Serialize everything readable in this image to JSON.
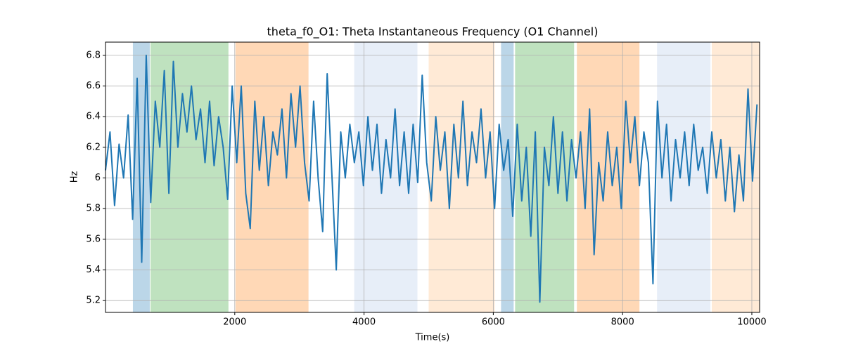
{
  "chart_data": {
    "type": "line",
    "title": "theta_f0_O1: Theta Instantaneous Frequency (O1 Channel)",
    "x_label": "Time(s)",
    "y_label": "Hz",
    "color": "#1f77b4",
    "grid": true,
    "xlim": [
      0,
      10120
    ],
    "ylim": [
      5.123,
      6.886
    ],
    "xticks": [
      2000,
      4000,
      6000,
      8000,
      10000
    ],
    "yticks": [
      5.2,
      5.4,
      5.6,
      5.8,
      6.0,
      6.2,
      6.4,
      6.6,
      6.8
    ],
    "spans": [
      {
        "start": 424,
        "end": 685,
        "color": "#1f77b4"
      },
      {
        "start": 696,
        "end": 1902,
        "color": "#2ca02c"
      },
      {
        "start": 2011,
        "end": 3141,
        "color": "#ff7f0e"
      },
      {
        "start": 3848,
        "end": 4826,
        "color": "#aec7e8"
      },
      {
        "start": 5000,
        "end": 6022,
        "color": "#ffbb78"
      },
      {
        "start": 6120,
        "end": 6315,
        "color": "#1f77b4"
      },
      {
        "start": 6337,
        "end": 7250,
        "color": "#2ca02c"
      },
      {
        "start": 7293,
        "end": 8261,
        "color": "#ff7f0e"
      },
      {
        "start": 8533,
        "end": 9359,
        "color": "#aec7e8"
      },
      {
        "start": 9380,
        "end": 10120,
        "color": "#ffbb78"
      }
    ],
    "span_opacity": 0.3,
    "x": [
      0,
      70,
      140,
      210,
      280,
      350,
      420,
      490,
      560,
      630,
      700,
      770,
      840,
      910,
      980,
      1050,
      1120,
      1190,
      1260,
      1330,
      1400,
      1470,
      1540,
      1610,
      1680,
      1750,
      1820,
      1890,
      1960,
      2030,
      2100,
      2170,
      2240,
      2310,
      2380,
      2450,
      2520,
      2590,
      2660,
      2730,
      2800,
      2870,
      2940,
      3010,
      3080,
      3150,
      3220,
      3290,
      3360,
      3430,
      3500,
      3570,
      3640,
      3710,
      3780,
      3850,
      3920,
      3990,
      4060,
      4130,
      4200,
      4270,
      4340,
      4410,
      4480,
      4550,
      4620,
      4690,
      4760,
      4830,
      4900,
      4970,
      5040,
      5110,
      5180,
      5250,
      5320,
      5390,
      5460,
      5530,
      5600,
      5670,
      5740,
      5810,
      5880,
      5950,
      6020,
      6090,
      6160,
      6230,
      6300,
      6370,
      6440,
      6510,
      6580,
      6650,
      6720,
      6790,
      6860,
      6930,
      7000,
      7070,
      7140,
      7210,
      7280,
      7350,
      7420,
      7490,
      7560,
      7630,
      7700,
      7770,
      7840,
      7910,
      7980,
      8050,
      8120,
      8190,
      8260,
      8330,
      8400,
      8470,
      8540,
      8610,
      8680,
      8750,
      8820,
      8890,
      8960,
      9030,
      9100,
      9170,
      9240,
      9310,
      9380,
      9450,
      9520,
      9590,
      9660,
      9730,
      9800,
      9870,
      9940,
      10010,
      10080
    ],
    "values": [
      6.05,
      6.3,
      5.82,
      6.22,
      6.0,
      6.41,
      5.73,
      6.65,
      5.45,
      6.8,
      5.84,
      6.5,
      6.2,
      6.7,
      5.9,
      6.76,
      6.2,
      6.55,
      6.3,
      6.6,
      6.25,
      6.45,
      6.1,
      6.5,
      6.08,
      6.4,
      6.2,
      5.86,
      6.6,
      6.1,
      6.6,
      5.9,
      5.67,
      6.5,
      6.05,
      6.4,
      5.95,
      6.3,
      6.15,
      6.45,
      6.0,
      6.55,
      6.2,
      6.6,
      6.1,
      5.85,
      6.5,
      6.0,
      5.65,
      6.68,
      6.05,
      5.4,
      6.3,
      6.0,
      6.35,
      6.1,
      6.3,
      5.95,
      6.4,
      6.05,
      6.35,
      5.9,
      6.25,
      6.0,
      6.45,
      5.95,
      6.3,
      5.9,
      6.35,
      5.97,
      6.67,
      6.1,
      5.85,
      6.4,
      6.05,
      6.3,
      5.8,
      6.35,
      6.0,
      6.5,
      5.95,
      6.3,
      6.1,
      6.45,
      6.0,
      6.3,
      5.8,
      6.35,
      6.05,
      6.25,
      5.75,
      6.35,
      5.85,
      6.2,
      5.62,
      6.3,
      5.19,
      6.2,
      5.95,
      6.4,
      5.9,
      6.3,
      5.85,
      6.25,
      6.0,
      6.3,
      5.8,
      6.45,
      5.5,
      6.1,
      5.85,
      6.3,
      5.95,
      6.2,
      5.8,
      6.5,
      6.1,
      6.4,
      5.95,
      6.3,
      6.1,
      5.31,
      6.5,
      6.0,
      6.35,
      5.85,
      6.25,
      6.0,
      6.3,
      5.95,
      6.35,
      6.05,
      6.2,
      5.9,
      6.3,
      6.0,
      6.25,
      5.85,
      6.2,
      5.78,
      6.15,
      5.85,
      6.58,
      5.98,
      6.48
    ]
  }
}
